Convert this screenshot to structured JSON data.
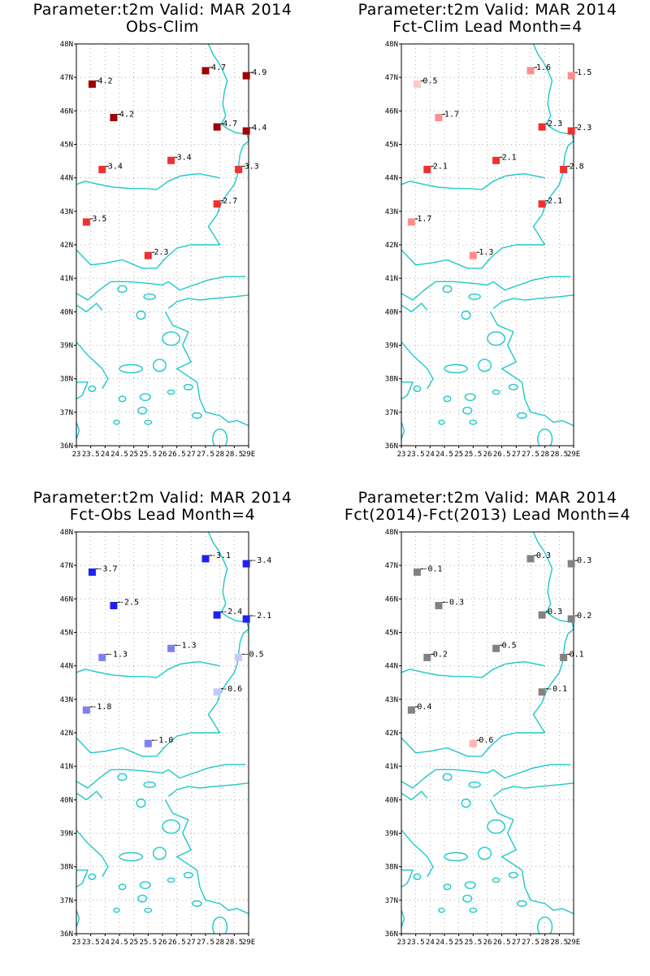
{
  "lat_ticks": [
    "48N",
    "47N",
    "46N",
    "45N",
    "44N",
    "43N",
    "42N",
    "41N",
    "40N",
    "39N",
    "38N",
    "37N",
    "36N"
  ],
  "lon_ticks": [
    "23",
    "23.5",
    "24",
    "24.5",
    "25",
    "25.5",
    "26",
    "26.5",
    "27",
    "27.5",
    "28",
    "28.5",
    "29E"
  ],
  "lon_range": [
    23,
    29
  ],
  "lat_range": [
    36,
    48
  ],
  "stations": [
    {
      "lon": 23.55,
      "lat": 46.8
    },
    {
      "lon": 24.3,
      "lat": 45.8
    },
    {
      "lon": 27.5,
      "lat": 47.2
    },
    {
      "lon": 28.92,
      "lat": 47.05
    },
    {
      "lon": 27.9,
      "lat": 45.52
    },
    {
      "lon": 28.92,
      "lat": 45.4
    },
    {
      "lon": 23.9,
      "lat": 44.25
    },
    {
      "lon": 26.3,
      "lat": 44.52
    },
    {
      "lon": 28.65,
      "lat": 44.25
    },
    {
      "lon": 27.9,
      "lat": 43.22
    },
    {
      "lon": 23.35,
      "lat": 42.68
    },
    {
      "lon": 25.5,
      "lat": 41.68
    }
  ],
  "panels": [
    {
      "title1": "Parameter:t2m Valid: MAR 2014",
      "title2": "Obs-Clim",
      "labels": [
        "4.2",
        "4.2",
        "4.7",
        "4.9",
        "4.7",
        "4.4",
        "3.4",
        "3.4",
        "3.3",
        "2.7",
        "3.5",
        "2.3"
      ],
      "colors": [
        "#a00000",
        "#a00000",
        "#a00000",
        "#a00000",
        "#a00000",
        "#a00000",
        "#f03030",
        "#f03030",
        "#f03030",
        "#f03030",
        "#f03030",
        "#f03030"
      ]
    },
    {
      "title1": "Parameter:t2m Valid: MAR 2014",
      "title2": "Fct-Clim Lead Month=4",
      "labels": [
        "0.5",
        "1.7",
        "1.6",
        "1.5",
        "2.3",
        "2.3",
        "2.1",
        "2.1",
        "2.8",
        "2.1",
        "1.7",
        "1.3"
      ],
      "colors": [
        "#ffc8c8",
        "#ff8c8c",
        "#ff8c8c",
        "#ff8c8c",
        "#f03030",
        "#f03030",
        "#f03030",
        "#f03030",
        "#f03030",
        "#f03030",
        "#ff8c8c",
        "#ff8c8c"
      ]
    },
    {
      "title1": "Parameter:t2m Valid: MAR 2014",
      "title2": "Fct-Obs Lead Month=4",
      "labels": [
        "-3.7",
        "-2.5",
        "-3.1",
        "-3.4",
        "-2.4",
        "-2.1",
        "-1.3",
        "-1.3",
        "-0.5",
        "-0.6",
        "-1.8",
        "-1.0"
      ],
      "colors": [
        "#2020f0",
        "#2020f0",
        "#2020f0",
        "#2020f0",
        "#2020f0",
        "#2020f0",
        "#8080f0",
        "#8080f0",
        "#c8c8ff",
        "#c8c8ff",
        "#8080f0",
        "#8080f0"
      ]
    },
    {
      "title1": "Parameter:t2m Valid: MAR 2014",
      "title2": "Fct(2014)-Fct(2013) Lead Month=4",
      "labels": [
        "-0.1",
        "-0.3",
        "0.3",
        "0.3",
        "0.3",
        "0.2",
        "0.2",
        "0.5",
        "0.1",
        "-0.1",
        "0.4",
        "0.6"
      ],
      "colors": [
        "#828282",
        "#828282",
        "#828282",
        "#828282",
        "#828282",
        "#828282",
        "#828282",
        "#828282",
        "#828282",
        "#828282",
        "#828282",
        "#ffb4b4"
      ]
    }
  ]
}
